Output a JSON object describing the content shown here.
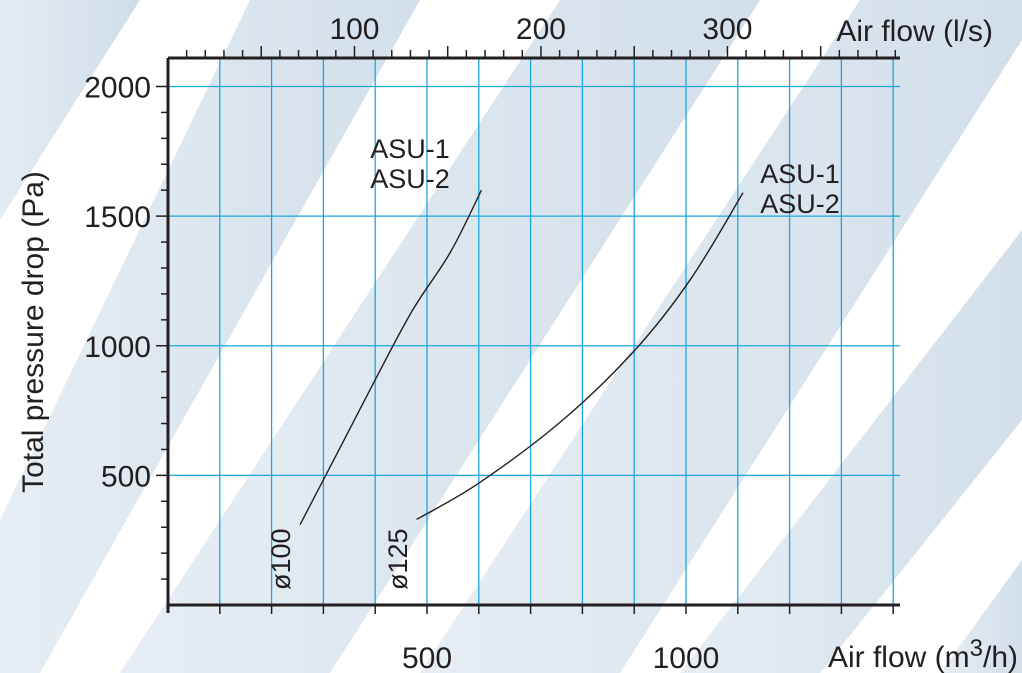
{
  "chart_data": {
    "type": "line",
    "title": "",
    "xlabel_bottom": "Air flow (m",
    "xlabel_bottom_sup": "3",
    "xlabel_bottom_end": "/h)",
    "xlabel_top": "Air flow (l/s)",
    "ylabel": "Total pressure drop (Pa)",
    "xlim": [
      0,
      1400
    ],
    "ylim": [
      0,
      2000
    ],
    "x_ticks_bottom": [
      500,
      1000
    ],
    "x_ticks_bottom_labels": [
      "500",
      "1000"
    ],
    "x_ticks_top": [
      100,
      200,
      300
    ],
    "x_ticks_top_labels": [
      "100",
      "200",
      "300"
    ],
    "y_ticks": [
      500,
      1000,
      1500,
      2000
    ],
    "y_ticks_labels": [
      "500",
      "1000",
      "1500",
      "2000"
    ],
    "grid": true,
    "grid_color": "#1aa7e0",
    "series": [
      {
        "name": "ø100",
        "model_labels": [
          "ASU-1",
          "ASU-2"
        ],
        "points": [
          [
            255,
            310
          ],
          [
            320,
            560
          ],
          [
            390,
            830
          ],
          [
            470,
            1130
          ],
          [
            545,
            1360
          ],
          [
            605,
            1600
          ]
        ]
      },
      {
        "name": "ø125",
        "model_labels": [
          "ASU-1",
          "ASU-2"
        ],
        "points": [
          [
            480,
            330
          ],
          [
            600,
            470
          ],
          [
            760,
            710
          ],
          [
            900,
            980
          ],
          [
            1010,
            1260
          ],
          [
            1110,
            1590
          ]
        ]
      }
    ]
  }
}
